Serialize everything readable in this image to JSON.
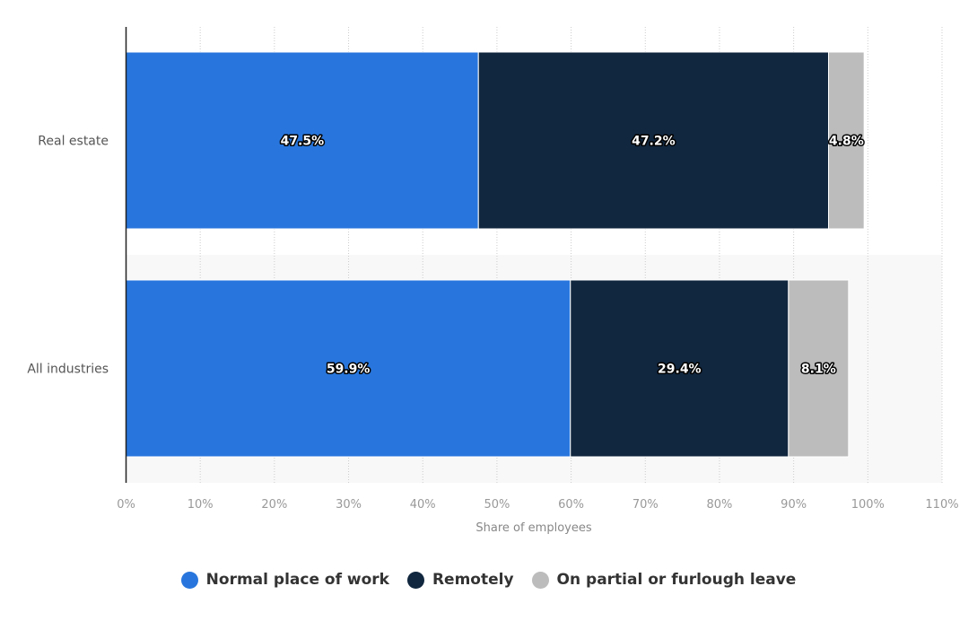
{
  "chart_data": {
    "type": "bar",
    "orientation": "horizontal",
    "stacked": true,
    "categories": [
      "Real estate",
      "All industries"
    ],
    "series": [
      {
        "name": "Normal place of work",
        "color": "#2876dd",
        "values": [
          47.5,
          59.9
        ],
        "labels": [
          "47.5%",
          "59.9%"
        ]
      },
      {
        "name": "Remotely",
        "color": "#11273f",
        "values": [
          47.2,
          29.4
        ],
        "labels": [
          "47.2%",
          "29.4%"
        ]
      },
      {
        "name": "On partial or furlough leave",
        "color": "#bcbcbc",
        "values": [
          4.8,
          8.1
        ],
        "labels": [
          "4.8%",
          "8.1%"
        ]
      }
    ],
    "xlabel": "Share of employees",
    "ylabel": "",
    "xlim": [
      0,
      110
    ],
    "xticks": [
      0,
      10,
      20,
      30,
      40,
      50,
      60,
      70,
      80,
      90,
      100,
      110
    ],
    "xtick_labels": [
      "0%",
      "10%",
      "20%",
      "30%",
      "40%",
      "50%",
      "60%",
      "70%",
      "80%",
      "90%",
      "100%",
      "110%"
    ],
    "grid": true,
    "legend_position": "bottom"
  }
}
